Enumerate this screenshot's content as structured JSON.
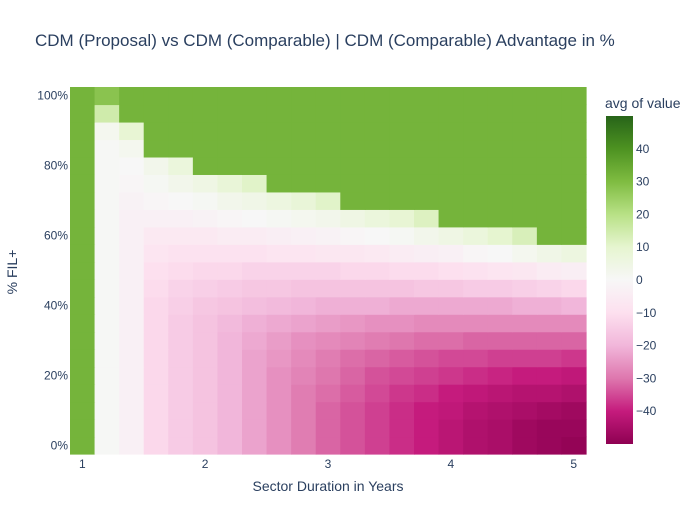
{
  "chart_data": {
    "type": "heatmap",
    "title": "CDM (Proposal) vs CDM (Comparable) | CDM (Comparable) Advantage in %",
    "xlabel": "Sector Duration in Years",
    "ylabel": "% FIL+",
    "x_ticks": [
      "1",
      "2",
      "3",
      "4",
      "5"
    ],
    "y_ticks": [
      "0%",
      "20%",
      "40%",
      "60%",
      "80%",
      "100%"
    ],
    "x_range": [
      1,
      5
    ],
    "y_range": [
      0,
      100
    ],
    "x_cells": 21,
    "y_cells": 21,
    "z_range": [
      -50,
      50
    ],
    "colorbar": {
      "title": "avg of value",
      "ticks": [
        "40",
        "30",
        "20",
        "10",
        "0",
        "−10",
        "−20",
        "−30",
        "−40"
      ],
      "tick_values": [
        40,
        30,
        20,
        10,
        0,
        -10,
        -20,
        -30,
        -40
      ],
      "colorscale": [
        "#8e0152",
        "#c51b7d",
        "#de77ae",
        "#f1b6da",
        "#fde0ef",
        "#f7f7f7",
        "#e6f5d0",
        "#b8e186",
        "#7fbc41",
        "#4d9221",
        "#276419"
      ]
    },
    "values_description_rows_bottom_to_top_percent_0_to_100": [
      [
        32,
        0.6,
        -3,
        -12,
        -15,
        -17,
        -20,
        -23,
        -26,
        -29,
        -32,
        -34,
        -36,
        -38,
        -40,
        -42,
        -44,
        -45,
        -47,
        -48,
        -49
      ],
      [
        32,
        0.6,
        -3,
        -12,
        -15,
        -17,
        -20,
        -23,
        -26,
        -29,
        -32,
        -34,
        -36,
        -38,
        -40,
        -42,
        -44,
        -45,
        -47,
        -48,
        -48
      ],
      [
        32,
        0.6,
        -3,
        -12,
        -15,
        -17,
        -20,
        -23,
        -26,
        -29,
        -32,
        -34,
        -36,
        -38,
        -40,
        -41,
        -43,
        -44,
        -45,
        -46,
        -47
      ],
      [
        32,
        0.6,
        -3,
        -12,
        -15,
        -17,
        -20,
        -23,
        -26,
        -29,
        -31,
        -33,
        -35,
        -37,
        -38,
        -40,
        -41,
        -42,
        -43,
        -43,
        -44
      ],
      [
        32,
        0.6,
        -3,
        -12,
        -15,
        -17,
        -20,
        -23,
        -26,
        -28,
        -30,
        -32,
        -34,
        -35,
        -36,
        -37,
        -38,
        -39,
        -40,
        -40,
        -41
      ],
      [
        32,
        0.6,
        -3,
        -12,
        -15,
        -17,
        -20,
        -23,
        -25,
        -27,
        -29,
        -31,
        -32,
        -33,
        -34,
        -35,
        -35,
        -36,
        -36,
        -36,
        -37
      ],
      [
        32,
        0.6,
        -3,
        -12,
        -15,
        -17,
        -20,
        -22,
        -24,
        -26,
        -27,
        -28,
        -29,
        -30,
        -31,
        -31,
        -32,
        -32,
        -32,
        -32,
        -32
      ],
      [
        32,
        0.6,
        -3,
        -12,
        -15,
        -17,
        -19,
        -21,
        -22,
        -23,
        -24,
        -25,
        -26,
        -26,
        -27,
        -27,
        -27,
        -27,
        -27,
        -27,
        -27
      ],
      [
        32,
        0.6,
        -3,
        -12,
        -14,
        -16,
        -17,
        -18,
        -19,
        -20,
        -21,
        -21,
        -21,
        -22,
        -22,
        -22,
        -22,
        -22,
        -21,
        -21,
        -20
      ],
      [
        32,
        0.6,
        -3,
        -11,
        -13,
        -14,
        -15,
        -16,
        -16,
        -17,
        -17,
        -17,
        -17,
        -17,
        -16,
        -16,
        -15,
        -15,
        -14,
        -13,
        -12
      ],
      [
        32,
        0.6,
        -3,
        -10,
        -11,
        -12,
        -12,
        -13,
        -13,
        -13,
        -13,
        -12,
        -12,
        -11,
        -11,
        -10,
        -9,
        -8,
        -7,
        -5,
        -4
      ],
      [
        32,
        0.6,
        -3,
        -8,
        -9,
        -9,
        -9,
        -9,
        -8,
        -8,
        -7,
        -7,
        -6,
        -5,
        -4,
        -3,
        -1,
        0,
        2,
        4,
        6
      ],
      [
        32,
        0.6,
        -3,
        -6,
        -6,
        -6,
        -5,
        -5,
        -4,
        -3,
        -2,
        -1,
        0,
        1,
        3,
        5,
        7,
        10,
        13,
        32,
        32
      ],
      [
        32,
        0.6,
        -3,
        -3,
        -3,
        -2,
        -1,
        0,
        1,
        2,
        3,
        5,
        7,
        9,
        12,
        32,
        32,
        32,
        32,
        32,
        32
      ],
      [
        32,
        0.6,
        -2,
        -1,
        0,
        1,
        3,
        4,
        6,
        8,
        11,
        32,
        32,
        32,
        32,
        32,
        32,
        32,
        32,
        32,
        32
      ],
      [
        32,
        0.6,
        -1,
        1,
        3,
        5,
        8,
        11,
        32,
        32,
        32,
        32,
        32,
        32,
        32,
        32,
        32,
        32,
        32,
        32,
        32
      ],
      [
        32,
        0.6,
        0,
        3,
        7,
        32,
        32,
        32,
        32,
        32,
        32,
        32,
        32,
        32,
        32,
        32,
        32,
        32,
        32,
        32,
        32
      ],
      [
        32,
        0.6,
        2,
        32,
        32,
        32,
        32,
        32,
        32,
        32,
        32,
        32,
        32,
        32,
        32,
        32,
        32,
        32,
        32,
        32,
        32
      ],
      [
        32,
        2,
        9,
        32,
        32,
        32,
        32,
        32,
        32,
        32,
        32,
        32,
        32,
        32,
        32,
        32,
        32,
        32,
        32,
        32,
        32
      ],
      [
        32,
        15,
        32,
        32,
        32,
        32,
        32,
        32,
        32,
        32,
        32,
        32,
        32,
        32,
        32,
        32,
        32,
        32,
        32,
        32,
        32
      ],
      [
        32,
        28,
        32,
        32,
        32,
        32,
        32,
        32,
        32,
        32,
        32,
        32,
        32,
        32,
        32,
        32,
        32,
        32,
        32,
        32,
        32
      ]
    ]
  }
}
